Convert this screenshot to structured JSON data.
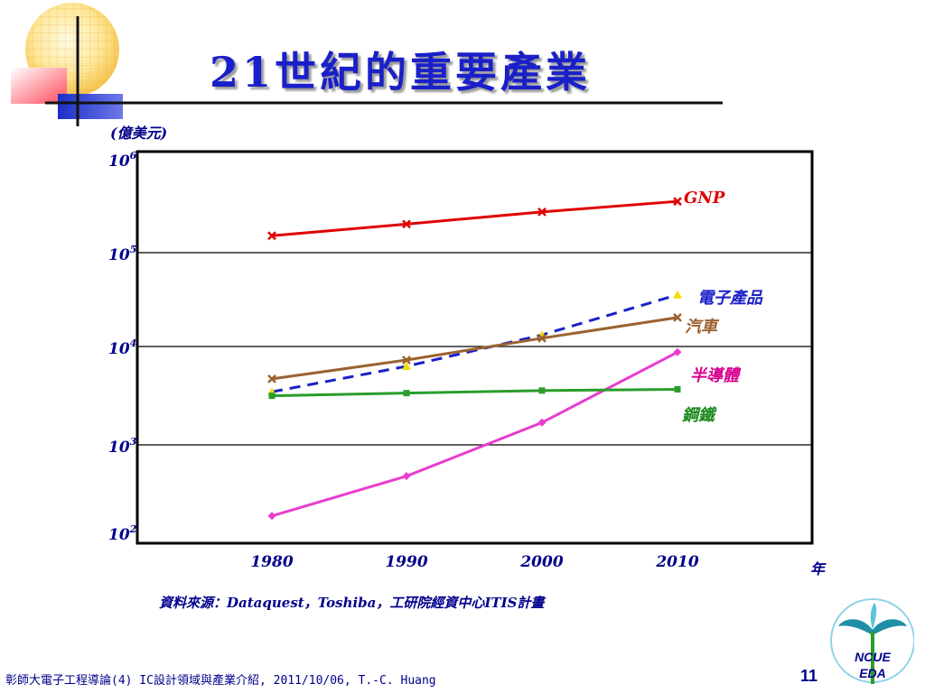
{
  "slide": {
    "title": "21世紀的重要產業",
    "source": "資料來源：Dataquest，Toshiba，工研院經資中心ITIS計畫",
    "footer": "彰師大電子工程導論(4) IC設計領域與產業介紹, 2011/10/06, T.-C. Huang",
    "page_number": "11",
    "logo_text": [
      "NCUE",
      "EDA"
    ],
    "colors": {
      "title": "#1a20c8",
      "text": "#00008b"
    }
  },
  "chart_data": {
    "type": "line",
    "x": [
      1980,
      1990,
      2000,
      2010
    ],
    "xlabel": "年",
    "ylabel": "(億美元)",
    "yscale": "log",
    "ylim": [
      100,
      1000000
    ],
    "ytick_values": [
      100,
      1000,
      10000,
      100000,
      1000000
    ],
    "ytick_labels": [
      {
        "base": "10",
        "exp": "2"
      },
      {
        "base": "10",
        "exp": "3"
      },
      {
        "base": "10",
        "exp": "4"
      },
      {
        "base": "10",
        "exp": "5"
      },
      {
        "base": "10",
        "exp": "6"
      }
    ],
    "grid": "horizontal",
    "series": [
      {
        "name": "GNP",
        "values": [
          150000,
          200000,
          270000,
          350000
        ],
        "color": "#e00000",
        "dash": false,
        "marker": "x",
        "label_color": "#e00000"
      },
      {
        "name": "電子產品",
        "values": [
          3200,
          6000,
          13000,
          35000
        ],
        "color": "#1a20c8",
        "dash": true,
        "marker": "triangle",
        "marker_color": "#f0e000",
        "label_color": "#1a20c8"
      },
      {
        "name": "汽車",
        "values": [
          4400,
          7000,
          12000,
          20000
        ],
        "color": "#9b6230",
        "dash": false,
        "marker": "x",
        "label_color": "#9b6230"
      },
      {
        "name": "半導體",
        "values": [
          150,
          400,
          1500,
          8500
        ],
        "color": "#e93ccf",
        "dash": false,
        "marker": "diamond",
        "label_color": "#d6008f"
      },
      {
        "name": "鋼鐵",
        "values": [
          2900,
          3100,
          3300,
          3400
        ],
        "color": "#2a9d2a",
        "dash": false,
        "marker": "square",
        "label_color": "#1f8a1f"
      }
    ]
  }
}
